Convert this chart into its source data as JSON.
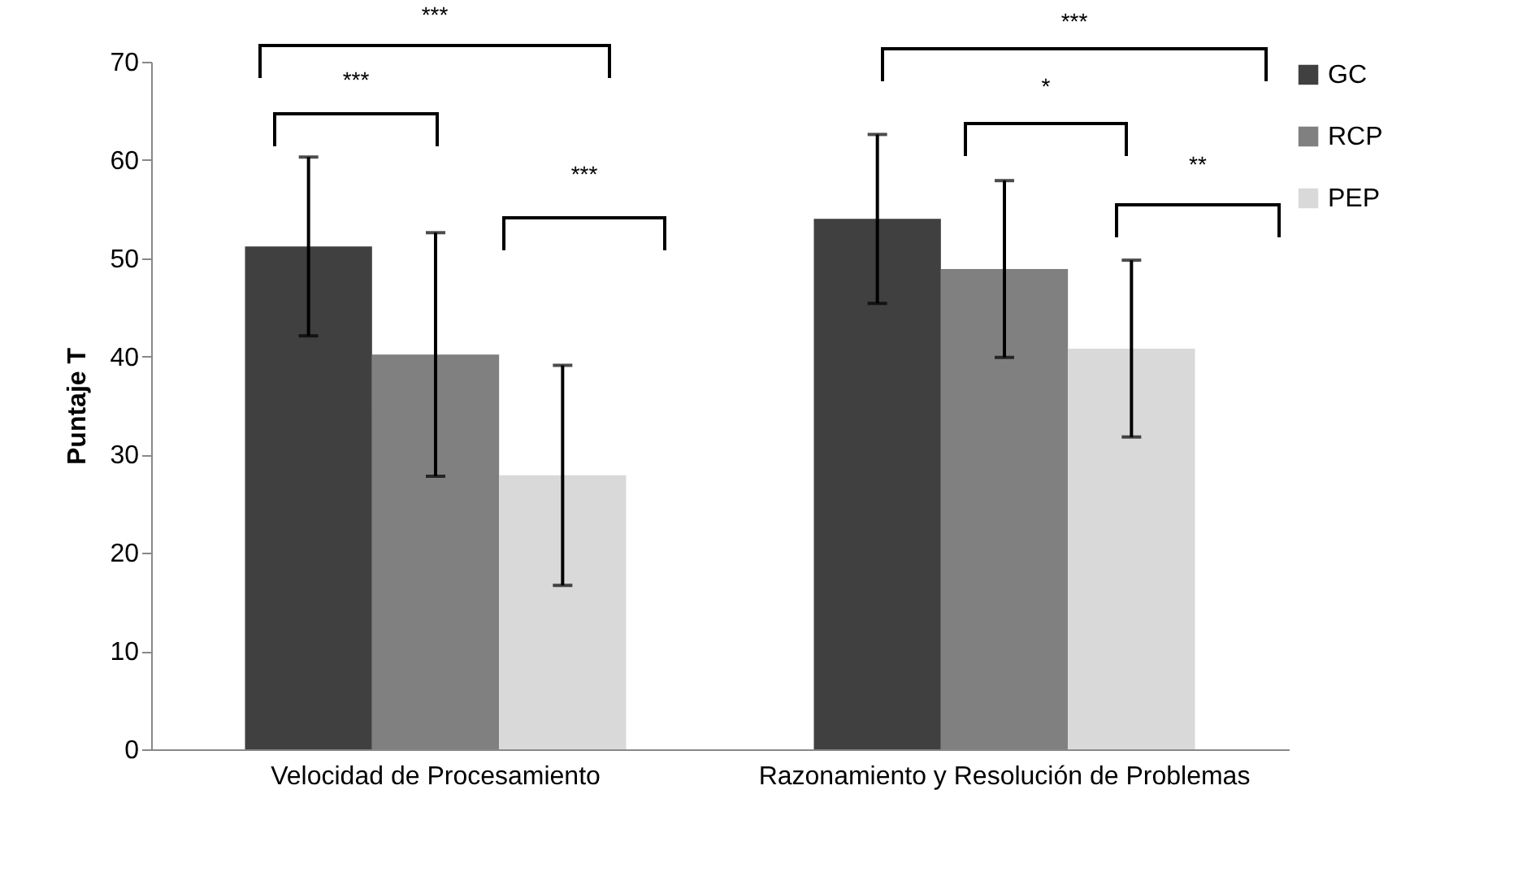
{
  "chart_data": {
    "type": "bar",
    "ylabel": "Puntaje T",
    "categories": [
      "Velocidad de Procesamiento",
      "Razonamiento y Resolución de Problemas"
    ],
    "series": [
      {
        "name": "GC",
        "color": "#404040",
        "values": [
          51.2,
          54.0
        ],
        "errors": [
          9.1,
          8.6
        ]
      },
      {
        "name": "RCP",
        "color": "#808080",
        "values": [
          40.2,
          48.9
        ],
        "errors": [
          12.4,
          9.0
        ]
      },
      {
        "name": "PEP",
        "color": "#d9d9d9",
        "values": [
          27.9,
          40.8
        ],
        "errors": [
          11.2,
          9.0
        ]
      }
    ],
    "ylim": [
      0,
      70
    ],
    "yticks": [
      0,
      10,
      20,
      30,
      40,
      50,
      60,
      70
    ],
    "grid": false,
    "legend": "right",
    "annotations": [
      "***",
      "***",
      "***",
      "***",
      "*",
      "**"
    ]
  }
}
